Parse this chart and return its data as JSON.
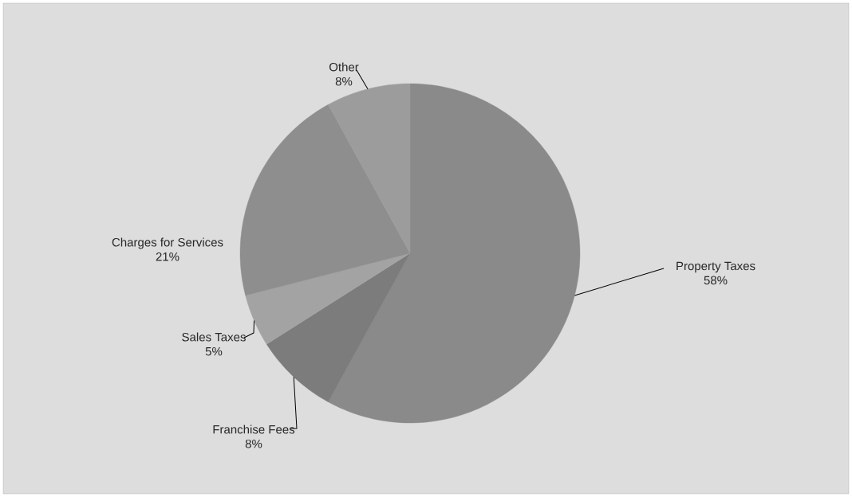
{
  "chart_data": {
    "type": "pie",
    "categories": [
      "Property Taxes",
      "Franchise Fees",
      "Sales Taxes",
      "Charges for Services",
      "Other"
    ],
    "values": [
      58,
      8,
      5,
      21,
      8
    ],
    "colors": [
      "#8a8a8a",
      "#7c7c7c",
      "#a3a3a3",
      "#8e8e8e",
      "#9c9c9c"
    ],
    "value_labels": [
      "58%",
      "8%",
      "5%",
      "21%",
      "8%"
    ]
  }
}
